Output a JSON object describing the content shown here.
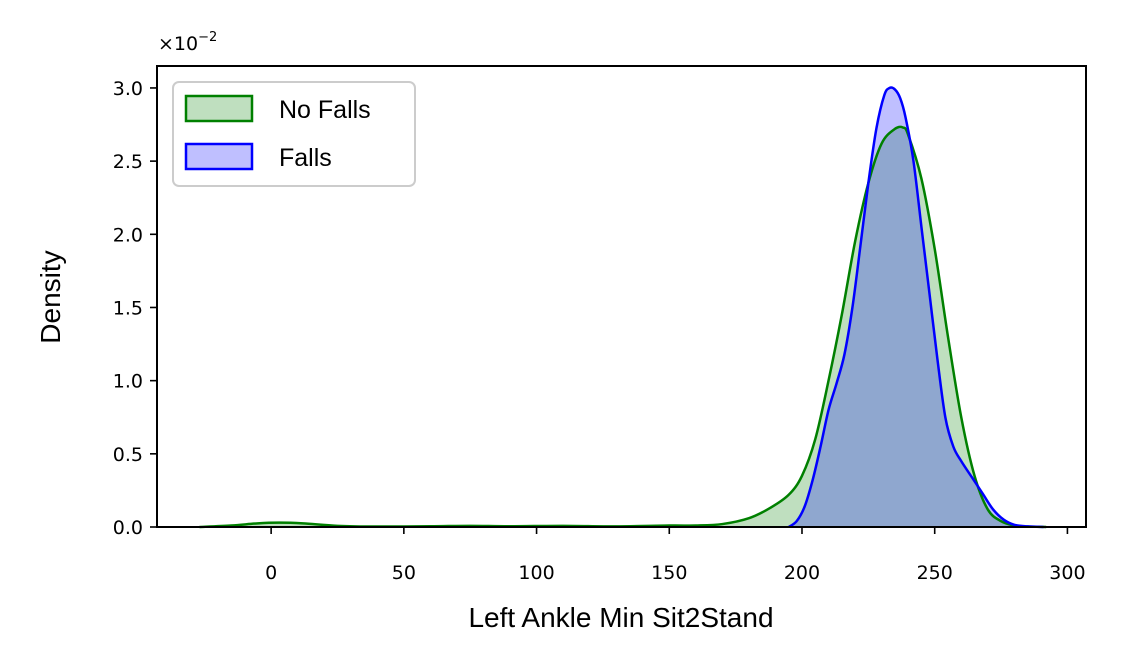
{
  "chart_data": {
    "type": "area",
    "xlabel": "Left Ankle Min Sit2Stand",
    "ylabel": "Density",
    "y_scale_multiplier": "×10",
    "y_scale_exponent": "−2",
    "xlim": [
      -43,
      307
    ],
    "ylim": [
      0,
      3.15
    ],
    "x_ticks": [
      0,
      50,
      100,
      150,
      200,
      250,
      300
    ],
    "y_ticks": [
      0.0,
      0.5,
      1.0,
      1.5,
      2.0,
      2.5,
      3.0
    ],
    "x_tick_labels": [
      "0",
      "50",
      "100",
      "150",
      "200",
      "250",
      "300"
    ],
    "y_tick_labels": [
      "0.0",
      "0.5",
      "1.0",
      "1.5",
      "2.0",
      "2.5",
      "3.0"
    ],
    "legend_position": "top-left",
    "grid": false,
    "series": [
      {
        "name": "No Falls",
        "line_color": "#008000",
        "fill_color": "#008000",
        "fill_opacity": 0.25,
        "x": [
          -27,
          -15,
          -5,
          3,
          12,
          25,
          40,
          60,
          75,
          90,
          110,
          130,
          150,
          160,
          170,
          180,
          188,
          195,
          200,
          205,
          210,
          215,
          220,
          225,
          230,
          235,
          238,
          240,
          245,
          250,
          255,
          260,
          265,
          270,
          275,
          280,
          285,
          292
        ],
        "y": [
          0.0,
          0.01,
          0.025,
          0.03,
          0.025,
          0.008,
          0.003,
          0.005,
          0.008,
          0.005,
          0.008,
          0.004,
          0.01,
          0.01,
          0.02,
          0.06,
          0.13,
          0.22,
          0.35,
          0.6,
          1.0,
          1.45,
          1.95,
          2.35,
          2.62,
          2.72,
          2.73,
          2.68,
          2.38,
          1.9,
          1.3,
          0.75,
          0.35,
          0.12,
          0.04,
          0.01,
          0.003,
          0.0
        ]
      },
      {
        "name": "Falls",
        "line_color": "#0000ff",
        "fill_color": "#0000ff",
        "fill_opacity": 0.25,
        "x": [
          195,
          198,
          201,
          204,
          207,
          210,
          213,
          216,
          219,
          222,
          225,
          228,
          231,
          233,
          235,
          237,
          239,
          242,
          245,
          248,
          251,
          254,
          257,
          260,
          264,
          268,
          272,
          276,
          280,
          285,
          291
        ],
        "y": [
          0.0,
          0.04,
          0.14,
          0.32,
          0.55,
          0.8,
          0.98,
          1.18,
          1.5,
          1.92,
          2.35,
          2.72,
          2.95,
          3.0,
          2.99,
          2.93,
          2.8,
          2.5,
          2.05,
          1.6,
          1.15,
          0.75,
          0.55,
          0.45,
          0.34,
          0.23,
          0.12,
          0.05,
          0.015,
          0.004,
          0.0
        ]
      }
    ]
  }
}
